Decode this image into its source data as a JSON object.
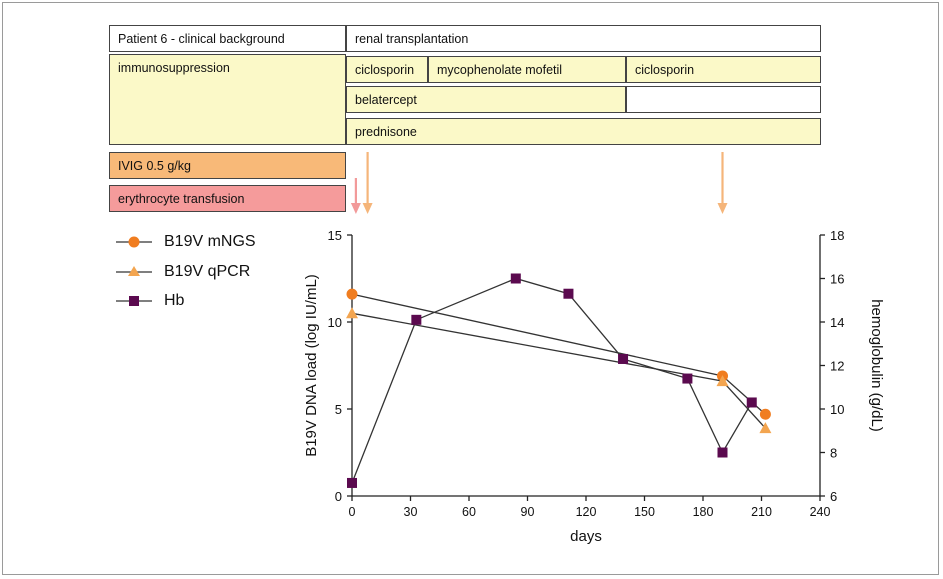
{
  "background_table": {
    "header_label": "Patient 6 - clinical background",
    "header_value": "renal transplantation",
    "immuno_label": "immunosuppression",
    "drugs": [
      {
        "label": "ciclosporin"
      },
      {
        "label": "mycophenolate mofetil"
      },
      {
        "label": "ciclosporin"
      },
      {
        "label": "belatercept"
      },
      {
        "label": ""
      },
      {
        "label": "prednisone"
      }
    ],
    "ivig_label": "IVIG 0.5 g/kg",
    "transfusion_label": "erythrocyte transfusion"
  },
  "colors": {
    "mngs": "#f07d20",
    "qpcr": "#f3a550",
    "hb": "#5b0a4f",
    "ivig_arrow": "#f5b57a",
    "transfusion_arrow": "#f29a9a",
    "yellow_cell": "#fbf9c8",
    "orange_cell": "#f8b978",
    "pink_cell": "#f59b9b"
  },
  "legend": [
    {
      "label": "B19V mNGS",
      "marker": "circle"
    },
    {
      "label": "B19V qPCR",
      "marker": "triangle"
    },
    {
      "label": "Hb",
      "marker": "square"
    }
  ],
  "events": {
    "ivig_days": [
      8,
      190
    ],
    "transfusion_days": [
      2
    ]
  },
  "chart_data": {
    "type": "line",
    "xlabel": "days",
    "ylabel": "B19V DNA load (log IU/mL)",
    "y2label": "hemoglobulin (g/dL)",
    "xlim": [
      0,
      240
    ],
    "ylim": [
      0,
      15
    ],
    "y2lim": [
      6,
      18
    ],
    "xticks": [
      "0",
      "30",
      "60",
      "90",
      "120",
      "150",
      "180",
      "210",
      "240"
    ],
    "yticks": [
      "0",
      "5",
      "10",
      "15"
    ],
    "y2ticks": [
      "6",
      "8",
      "10",
      "12",
      "14",
      "16",
      "18"
    ],
    "grid": false,
    "series": [
      {
        "name": "B19V mNGS",
        "axis": "left",
        "marker": "circle",
        "x": [
          0,
          190,
          212
        ],
        "y": [
          11.6,
          6.9,
          4.7
        ]
      },
      {
        "name": "B19V qPCR",
        "axis": "left",
        "marker": "triangle",
        "x": [
          0,
          190,
          212
        ],
        "y": [
          10.5,
          6.6,
          3.9
        ]
      },
      {
        "name": "Hb",
        "axis": "right",
        "marker": "square",
        "x": [
          0,
          33,
          84,
          111,
          139,
          172,
          190,
          205
        ],
        "y": [
          6.6,
          14.1,
          16.0,
          15.3,
          12.3,
          11.4,
          8.0,
          10.3
        ]
      }
    ]
  }
}
